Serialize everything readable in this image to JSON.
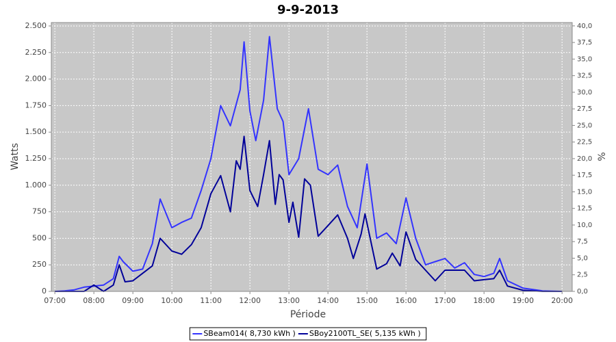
{
  "chart_data": {
    "type": "line",
    "title": "9-9-2013",
    "x_label": "Période",
    "y_label": "Watts",
    "y2_label": "%",
    "xlim": [
      6.91,
      20.26
    ],
    "xticks": [
      {
        "value": 7,
        "label": "07:00"
      },
      {
        "value": 8,
        "label": "08:00"
      },
      {
        "value": 9,
        "label": "09:00"
      },
      {
        "value": 10,
        "label": "10:00"
      },
      {
        "value": 11,
        "label": "11:00"
      },
      {
        "value": 12,
        "label": "12:00"
      },
      {
        "value": 13,
        "label": "13:00"
      },
      {
        "value": 14,
        "label": "14:00"
      },
      {
        "value": 15,
        "label": "15:00"
      },
      {
        "value": 16,
        "label": "16:00"
      },
      {
        "value": 17,
        "label": "17:00"
      },
      {
        "value": 18,
        "label": "18:00"
      },
      {
        "value": 19,
        "label": "19:00"
      },
      {
        "value": 20,
        "label": "20:00"
      }
    ],
    "ylim": [
      0,
      2532
    ],
    "yticks": [
      0,
      250,
      500,
      750,
      {
        "value": 1000,
        "label": "1.000"
      },
      {
        "value": 1250,
        "label": "1.250"
      },
      {
        "value": 1500,
        "label": "1.500"
      },
      {
        "value": 1750,
        "label": "1.750"
      },
      {
        "value": 2000,
        "label": "2.000"
      },
      {
        "value": 2250,
        "label": "2.250"
      },
      {
        "value": 2500,
        "label": "2.500"
      }
    ],
    "y2lim": [
      0,
      40.5
    ],
    "y2ticks": [
      {
        "value": 0,
        "label": "0,0"
      },
      {
        "value": 2.5,
        "label": "2,5"
      },
      {
        "value": 5,
        "label": "5,0"
      },
      {
        "value": 7.5,
        "label": "7,5"
      },
      {
        "value": 10,
        "label": "10,0"
      },
      {
        "value": 12.5,
        "label": "12,5"
      },
      {
        "value": 15,
        "label": "15,0"
      },
      {
        "value": 17.5,
        "label": "17,5"
      },
      {
        "value": 20,
        "label": "20,0"
      },
      {
        "value": 22.5,
        "label": "22,5"
      },
      {
        "value": 25,
        "label": "25,0"
      },
      {
        "value": 27.5,
        "label": "27,5"
      },
      {
        "value": 30,
        "label": "30,0"
      },
      {
        "value": 32.5,
        "label": "32,5"
      },
      {
        "value": 35,
        "label": "35,0"
      },
      {
        "value": 37.5,
        "label": "37,5"
      },
      {
        "value": 40,
        "label": "40,0"
      }
    ],
    "grid": true,
    "legend": "bottom",
    "series": [
      {
        "name": "SBeam014( 8,730 kWh )",
        "color": "#3333ff",
        "x": [
          7.0,
          7.25,
          7.5,
          7.75,
          8.0,
          8.25,
          8.5,
          8.65,
          8.75,
          9.0,
          9.25,
          9.5,
          9.7,
          10.0,
          10.25,
          10.5,
          10.75,
          11.0,
          11.25,
          11.5,
          11.75,
          11.85,
          12.0,
          12.15,
          12.35,
          12.5,
          12.7,
          12.85,
          13.0,
          13.25,
          13.5,
          13.75,
          14.0,
          14.25,
          14.5,
          14.75,
          15.0,
          15.25,
          15.5,
          15.75,
          16.0,
          16.25,
          16.5,
          16.75,
          17.0,
          17.25,
          17.5,
          17.75,
          18.0,
          18.25,
          18.4,
          18.6,
          19.0,
          19.5,
          20.0
        ],
        "values": [
          0,
          5,
          15,
          40,
          50,
          60,
          120,
          330,
          280,
          190,
          210,
          450,
          870,
          600,
          650,
          690,
          950,
          1250,
          1750,
          1560,
          1900,
          2350,
          1700,
          1420,
          1800,
          2400,
          1720,
          1600,
          1100,
          1250,
          1720,
          1150,
          1100,
          1190,
          800,
          600,
          1200,
          500,
          550,
          450,
          880,
          500,
          250,
          280,
          310,
          220,
          270,
          160,
          140,
          170,
          310,
          100,
          30,
          5,
          0
        ]
      },
      {
        "name": "SBoy2100TL_SE( 5,135 kWh )",
        "color": "#000099",
        "x": [
          7.0,
          7.75,
          8.0,
          8.25,
          8.5,
          8.65,
          8.8,
          9.0,
          9.25,
          9.5,
          9.7,
          10.0,
          10.25,
          10.5,
          10.75,
          11.0,
          11.25,
          11.5,
          11.65,
          11.75,
          11.85,
          12.0,
          12.2,
          12.35,
          12.5,
          12.65,
          12.75,
          12.85,
          13.0,
          13.1,
          13.25,
          13.4,
          13.55,
          13.75,
          14.0,
          14.25,
          14.5,
          14.65,
          14.85,
          14.95,
          15.25,
          15.5,
          15.65,
          15.85,
          16.0,
          16.25,
          16.5,
          16.75,
          17.0,
          17.25,
          17.5,
          17.75,
          18.0,
          18.25,
          18.4,
          18.6,
          19.0,
          19.5,
          20.0
        ],
        "values": [
          0,
          0,
          60,
          0,
          60,
          250,
          90,
          100,
          170,
          240,
          500,
          380,
          350,
          440,
          600,
          920,
          1090,
          750,
          1230,
          1150,
          1460,
          950,
          800,
          1100,
          1420,
          820,
          1100,
          1050,
          650,
          840,
          510,
          1060,
          1000,
          520,
          620,
          720,
          500,
          310,
          540,
          730,
          210,
          260,
          360,
          240,
          560,
          300,
          200,
          100,
          200,
          200,
          200,
          100,
          110,
          120,
          200,
          50,
          10,
          0,
          0
        ]
      }
    ]
  }
}
